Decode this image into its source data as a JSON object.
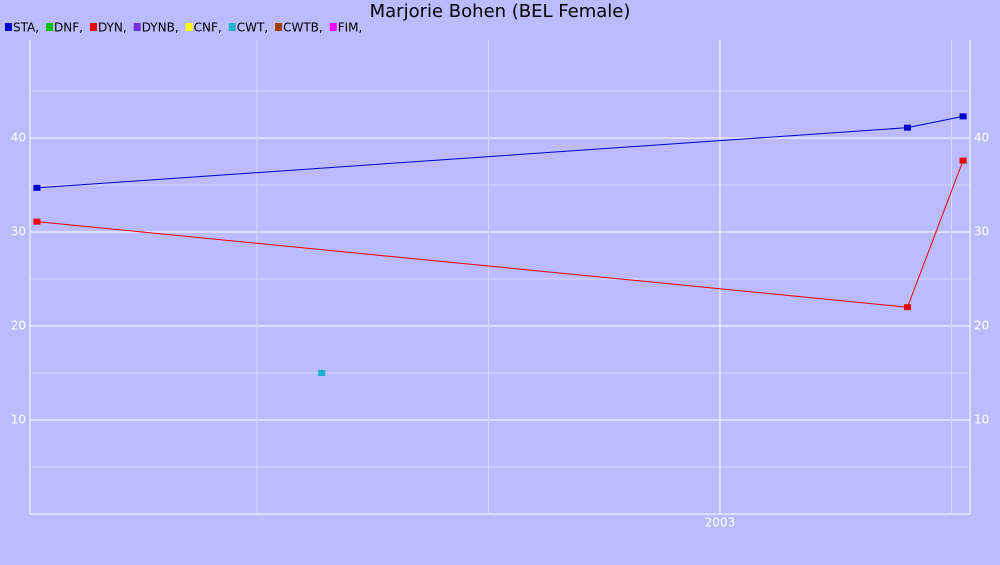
{
  "chart_data": {
    "type": "line",
    "title": "Marjorie Bohen (BEL Female)",
    "xlim": [
      2000.02,
      2004.08
    ],
    "xticks": [
      2003
    ],
    "x_minor_grid": [
      2001,
      2002,
      2004
    ],
    "ylim": [
      0,
      50
    ],
    "yticks": [
      10,
      20,
      30,
      40
    ],
    "grid": true,
    "series": [
      {
        "name": "STA,",
        "color": "#0000cc",
        "x": [
          2000.05,
          2003.81,
          2004.05
        ],
        "values": [
          34.7,
          41.1,
          42.3
        ]
      },
      {
        "name": "DNF,",
        "color": "#00c000",
        "x": [],
        "values": []
      },
      {
        "name": "DYN,",
        "color": "#ee0000",
        "x": [
          2000.05,
          2003.81,
          2004.05
        ],
        "values": [
          31.1,
          22.0,
          37.6
        ]
      },
      {
        "name": "DYNB,",
        "color": "#7030e0",
        "x": [],
        "values": []
      },
      {
        "name": "CNF,",
        "color": "#ffff00",
        "x": [],
        "values": []
      },
      {
        "name": "CWT,",
        "color": "#20b0d0",
        "x": [
          2001.28
        ],
        "values": [
          15.0
        ]
      },
      {
        "name": "CWTB,",
        "color": "#a04000",
        "x": [],
        "values": []
      },
      {
        "name": "FIM,",
        "color": "#ff00ff",
        "x": [],
        "values": []
      }
    ]
  }
}
